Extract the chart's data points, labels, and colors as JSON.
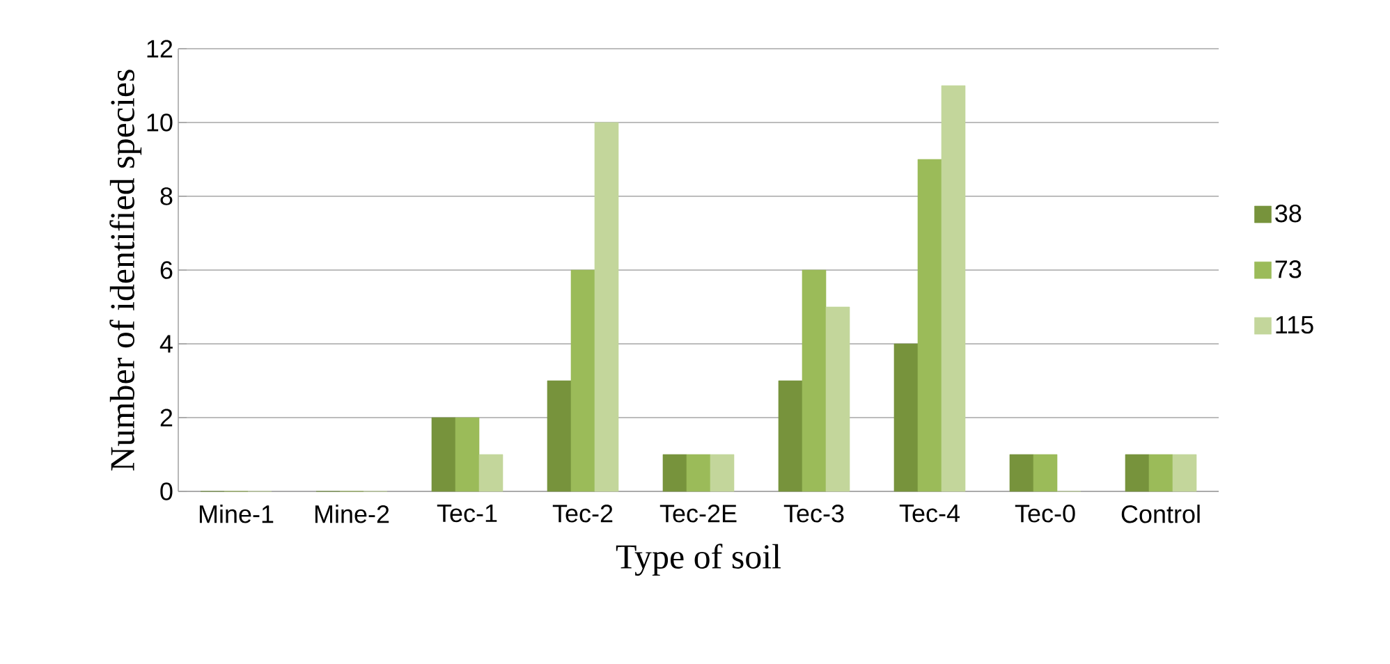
{
  "chart_data": {
    "type": "bar",
    "xlabel": "Type  of soil",
    "ylabel": "Number of identified species",
    "categories": [
      "Mine-1",
      "Mine-2",
      "Tec-1",
      "Tec-2",
      "Tec-2E",
      "Tec-3",
      "Tec-4",
      "Tec-0",
      "Control"
    ],
    "series": [
      {
        "name": "38",
        "color": "#77933c",
        "values": [
          0,
          0,
          2,
          3,
          1,
          3,
          4,
          1,
          1
        ]
      },
      {
        "name": "73",
        "color": "#9bbb59",
        "values": [
          0,
          0,
          2,
          6,
          1,
          6,
          9,
          1,
          1
        ]
      },
      {
        "name": "115",
        "color": "#c3d69b",
        "values": [
          0,
          0,
          1,
          10,
          1,
          5,
          11,
          0,
          1
        ]
      }
    ],
    "ylim": [
      0,
      12
    ],
    "yticks": [
      0,
      2,
      4,
      6,
      8,
      10,
      12
    ],
    "grid": "y",
    "legend": "right"
  }
}
